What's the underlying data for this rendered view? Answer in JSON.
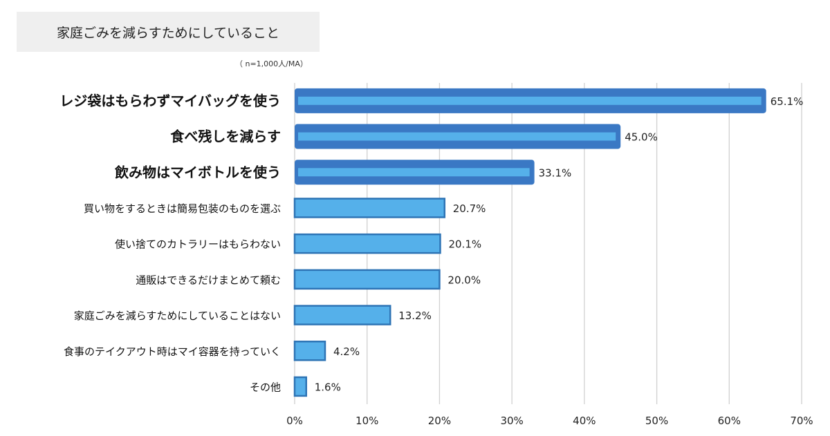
{
  "title": "家庭ごみを減らすためにしていること",
  "note": "（ n=1,000人/MA）",
  "chart_data": {
    "type": "bar",
    "orientation": "horizontal",
    "categories": [
      "レジ袋はもらわずマイバッグを使う",
      "食べ残しを減らす",
      "飲み物はマイボトルを使う",
      "買い物をするときは簡易包装のものを選ぶ",
      "使い捨てのカトラリーはもらわない",
      "通販はできるだけまとめて頼む",
      "家庭ごみを減らすためにしていることはない",
      "食事のテイクアウト時はマイ容器を持っていく",
      "その他"
    ],
    "values": [
      65.1,
      45.0,
      33.1,
      20.7,
      20.1,
      20.0,
      13.2,
      4.2,
      1.6
    ],
    "value_labels": [
      "65.1%",
      "45.0%",
      "33.1%",
      "20.7%",
      "20.1%",
      "20.0%",
      "13.2%",
      "4.2%",
      "1.6%"
    ],
    "highlighted": [
      true,
      true,
      true,
      false,
      false,
      false,
      false,
      false,
      false
    ],
    "xlim": [
      0,
      70
    ],
    "xticks": [
      "0%",
      "10%",
      "20%",
      "30%",
      "40%",
      "50%",
      "60%",
      "70%"
    ],
    "grid": true,
    "colors": {
      "bar_fill": "#55b0ea",
      "bar_border": "#2e74b5",
      "highlight_fill": "#3a78c4",
      "highlight_inner": "#55b0ea",
      "grid": "#d0d0d0"
    }
  }
}
